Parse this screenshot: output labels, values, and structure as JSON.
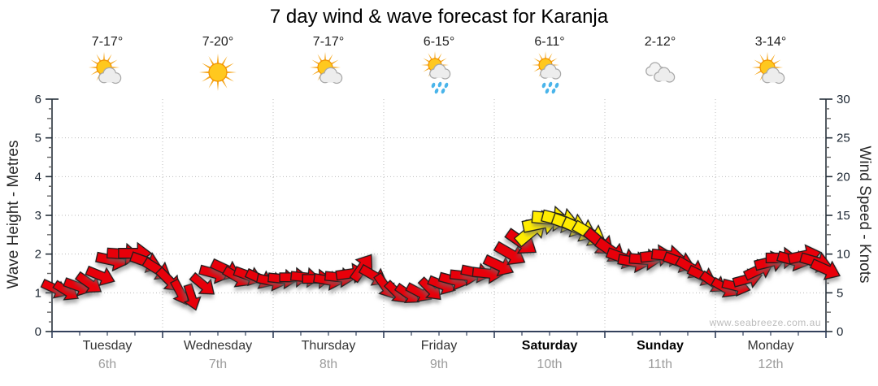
{
  "title": "7 day wind & wave forecast for Karanja",
  "watermark": "www.seabreeze.com.au",
  "axes": {
    "left_label": "Wave Height - Metres",
    "right_label": "Wind Speed - Knots",
    "left_ticks": [
      "0",
      "1",
      "2",
      "3",
      "4",
      "5",
      "6"
    ],
    "right_ticks": [
      "0",
      "5",
      "10",
      "15",
      "20",
      "25",
      "30"
    ]
  },
  "days": [
    {
      "name": "Tuesday",
      "date": "6th",
      "temp": "7-17°",
      "icon": "partly-cloudy",
      "bold": false
    },
    {
      "name": "Wednesday",
      "date": "7th",
      "temp": "7-20°",
      "icon": "sunny",
      "bold": false
    },
    {
      "name": "Thursday",
      "date": "8th",
      "temp": "7-17°",
      "icon": "partly-cloudy",
      "bold": false
    },
    {
      "name": "Friday",
      "date": "9th",
      "temp": "6-15°",
      "icon": "showers",
      "bold": false
    },
    {
      "name": "Saturday",
      "date": "10th",
      "temp": "6-11°",
      "icon": "showers",
      "bold": true
    },
    {
      "name": "Sunday",
      "date": "11th",
      "temp": "2-12°",
      "icon": "cloudy",
      "bold": true
    },
    {
      "name": "Monday",
      "date": "12th",
      "temp": "3-14°",
      "icon": "partly-cloudy",
      "bold": false
    }
  ],
  "colors": {
    "arrow_red": "#e8000a",
    "arrow_yellow": "#ffec00",
    "arrow_outline": "#1c1c1c",
    "grid": "#bbbbbb",
    "axis": "#26303a",
    "x_axis": "#33415c",
    "tick_label": "#1a2430",
    "minor_tick": "#666666",
    "sun_core": "#ffc81e",
    "sun_edge": "#f09000",
    "sun_ray": "#f6a81f",
    "cloud_fill": "#ededed",
    "cloud_edge": "#a8a8a8",
    "rain_drop": "#49b4ea"
  },
  "chart_data": {
    "type": "wind-arrows-forecast",
    "title": "7 day wind & wave forecast for Karanja",
    "x_days": [
      "Tuesday 6th",
      "Wednesday 7th",
      "Thursday 8th",
      "Friday 9th",
      "Saturday 10th",
      "Sunday 11th",
      "Monday 12th"
    ],
    "y_left": {
      "label": "Wave Height - Metres",
      "range": [
        0,
        6
      ]
    },
    "y_right": {
      "label": "Wind Speed - Knots",
      "range": [
        0,
        30
      ]
    },
    "grid": true,
    "arrow_format": "[x_px_within_952px_plot, wind_knots, direction_deg_clockwise_from_east, color r|y]",
    "arrows": [
      [
        4,
        5.5,
        25,
        "r"
      ],
      [
        18,
        5.2,
        32,
        "r"
      ],
      [
        32,
        5.8,
        20,
        "r"
      ],
      [
        46,
        6.2,
        35,
        "r"
      ],
      [
        60,
        7.2,
        22,
        "r"
      ],
      [
        74,
        9.2,
        12,
        "r"
      ],
      [
        88,
        10.0,
        4,
        "r"
      ],
      [
        102,
        10.1,
        0,
        "r"
      ],
      [
        116,
        9.0,
        20,
        "r"
      ],
      [
        130,
        8.0,
        32,
        "r"
      ],
      [
        144,
        6.6,
        45,
        "r"
      ],
      [
        158,
        5.0,
        62,
        "r"
      ],
      [
        172,
        4.4,
        72,
        "r"
      ],
      [
        186,
        6.0,
        40,
        "r"
      ],
      [
        200,
        7.5,
        15,
        "r"
      ],
      [
        214,
        8.0,
        25,
        "r"
      ],
      [
        228,
        7.0,
        30,
        "r"
      ],
      [
        242,
        7.2,
        20,
        "r"
      ],
      [
        256,
        6.8,
        25,
        "r"
      ],
      [
        270,
        6.5,
        12,
        "r"
      ],
      [
        284,
        6.8,
        6,
        "r"
      ],
      [
        298,
        7.0,
        0,
        "r"
      ],
      [
        312,
        7.0,
        6,
        "r"
      ],
      [
        326,
        6.8,
        0,
        "r"
      ],
      [
        340,
        6.6,
        10,
        "r"
      ],
      [
        354,
        7.0,
        6,
        "r"
      ],
      [
        368,
        7.5,
        -8,
        "r"
      ],
      [
        382,
        8.3,
        -55,
        "r"
      ],
      [
        396,
        7.2,
        30,
        "r"
      ],
      [
        410,
        5.8,
        55,
        "r"
      ],
      [
        424,
        5.0,
        45,
        "r"
      ],
      [
        438,
        4.8,
        35,
        "r"
      ],
      [
        452,
        5.0,
        28,
        "r"
      ],
      [
        466,
        5.4,
        45,
        "r"
      ],
      [
        480,
        6.0,
        22,
        "r"
      ],
      [
        494,
        6.6,
        15,
        "r"
      ],
      [
        508,
        7.2,
        6,
        "r"
      ],
      [
        522,
        7.6,
        12,
        "r"
      ],
      [
        536,
        7.5,
        6,
        "r"
      ],
      [
        550,
        8.5,
        25,
        "r"
      ],
      [
        564,
        10.0,
        30,
        "r"
      ],
      [
        578,
        11.5,
        35,
        "r"
      ],
      [
        590,
        13.0,
        -40,
        "y"
      ],
      [
        602,
        14.0,
        -12,
        "y"
      ],
      [
        614,
        14.6,
        5,
        "y"
      ],
      [
        626,
        14.4,
        14,
        "y"
      ],
      [
        638,
        13.8,
        20,
        "y"
      ],
      [
        650,
        13.2,
        25,
        "y"
      ],
      [
        662,
        12.6,
        30,
        "y"
      ],
      [
        674,
        11.5,
        40,
        "r"
      ],
      [
        688,
        10.4,
        35,
        "r"
      ],
      [
        702,
        9.5,
        20,
        "r"
      ],
      [
        716,
        9.0,
        10,
        "r"
      ],
      [
        730,
        9.3,
        4,
        "r"
      ],
      [
        744,
        9.8,
        -6,
        "r"
      ],
      [
        758,
        9.8,
        6,
        "r"
      ],
      [
        772,
        9.0,
        20,
        "r"
      ],
      [
        786,
        8.2,
        30,
        "r"
      ],
      [
        800,
        7.2,
        26,
        "r"
      ],
      [
        814,
        6.3,
        35,
        "r"
      ],
      [
        828,
        5.6,
        30,
        "r"
      ],
      [
        842,
        5.8,
        14,
        "r"
      ],
      [
        856,
        6.8,
        -15,
        "r"
      ],
      [
        870,
        8.0,
        -25,
        "r"
      ],
      [
        884,
        9.0,
        -14,
        "r"
      ],
      [
        898,
        9.5,
        0,
        "r"
      ],
      [
        912,
        9.2,
        16,
        "r"
      ],
      [
        926,
        9.8,
        -12,
        "r"
      ],
      [
        940,
        9.0,
        16,
        "r"
      ],
      [
        952,
        8.0,
        24,
        "r"
      ]
    ]
  }
}
